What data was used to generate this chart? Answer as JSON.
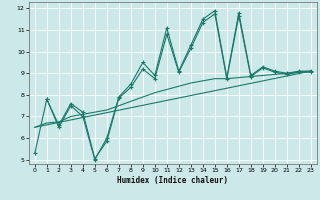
{
  "xlabel": "Humidex (Indice chaleur)",
  "bg_color": "#cce8e8",
  "grid_color": "#ffffff",
  "line_color": "#1a7a6a",
  "xlim": [
    -0.5,
    23.5
  ],
  "ylim": [
    4.8,
    12.3
  ],
  "xticks": [
    0,
    1,
    2,
    3,
    4,
    5,
    6,
    7,
    8,
    9,
    10,
    11,
    12,
    13,
    14,
    15,
    16,
    17,
    18,
    19,
    20,
    21,
    22,
    23
  ],
  "yticks": [
    5,
    6,
    7,
    8,
    9,
    10,
    11,
    12
  ],
  "series1_x": [
    0,
    1,
    2,
    3,
    4,
    5,
    6,
    7,
    8,
    9,
    10,
    11,
    12,
    13,
    14,
    15,
    16,
    17,
    18,
    19,
    20,
    21,
    22,
    23
  ],
  "series1_y": [
    5.3,
    7.8,
    6.5,
    7.5,
    7.0,
    5.0,
    6.0,
    7.9,
    8.5,
    9.5,
    8.9,
    11.1,
    9.1,
    10.3,
    11.5,
    11.9,
    8.8,
    11.8,
    8.9,
    9.3,
    9.1,
    9.0,
    9.1,
    9.1
  ],
  "series2_x": [
    1,
    2,
    3,
    4,
    5,
    6,
    7,
    8,
    9,
    10,
    11,
    12,
    13,
    14,
    15,
    16,
    17,
    18,
    19,
    20,
    21,
    22,
    23
  ],
  "series2_y": [
    7.8,
    6.6,
    7.6,
    7.2,
    5.05,
    5.85,
    7.85,
    8.35,
    9.2,
    8.75,
    10.8,
    9.05,
    10.15,
    11.35,
    11.75,
    8.75,
    11.65,
    8.85,
    9.25,
    9.05,
    8.95,
    9.05,
    9.05
  ],
  "trend_x": [
    0,
    23
  ],
  "trend_y": [
    6.5,
    9.1
  ],
  "smooth_x": [
    0,
    1,
    2,
    3,
    4,
    5,
    6,
    7,
    8,
    9,
    10,
    11,
    12,
    13,
    14,
    15,
    16,
    17,
    18,
    19,
    20,
    21,
    22,
    23
  ],
  "smooth_y": [
    6.5,
    6.7,
    6.75,
    7.0,
    7.1,
    7.2,
    7.3,
    7.5,
    7.7,
    7.9,
    8.1,
    8.25,
    8.4,
    8.55,
    8.65,
    8.75,
    8.75,
    8.8,
    8.85,
    8.9,
    8.95,
    9.0,
    9.05,
    9.1
  ]
}
